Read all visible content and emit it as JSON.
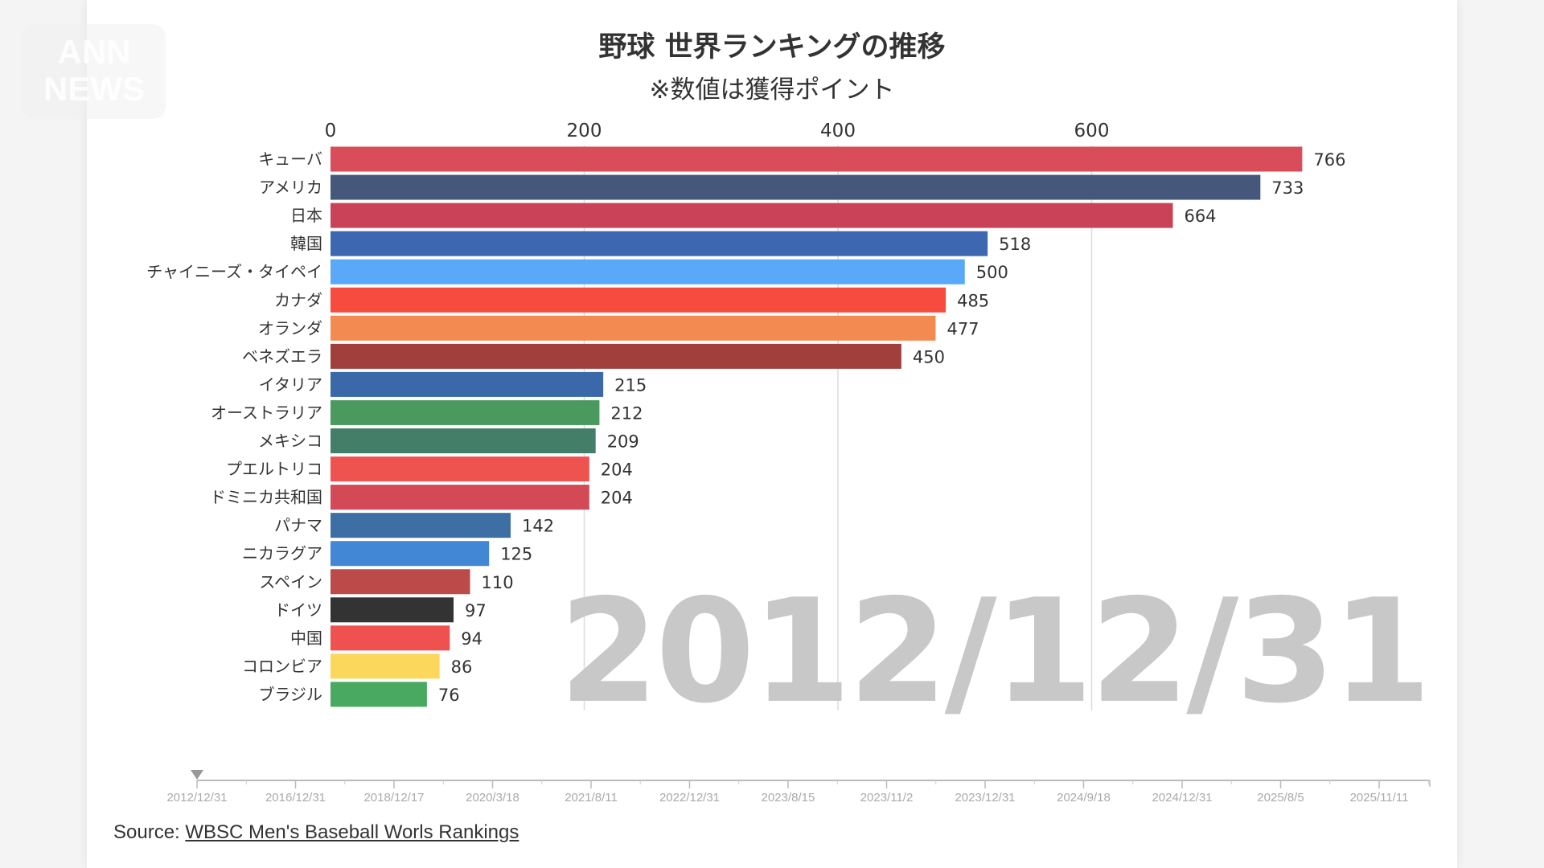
{
  "title": "野球 世界ランキングの推移",
  "subtitle": "※数値は獲得ポイント",
  "watermark": "ANN NEWS",
  "current_date": "2012/12/31",
  "source": {
    "prefix": "Source: ",
    "link_text": "WBSC Men's Baseball Worls Rankings"
  },
  "timeline": {
    "labels": [
      "2012/12/31",
      "2016/12/31",
      "2018/12/17",
      "2020/3/18",
      "2021/8/11",
      "2022/12/31",
      "2023/8/15",
      "2023/11/2",
      "2023/12/31",
      "2024/9/18",
      "2024/12/31",
      "2025/8/5",
      "2025/11/11"
    ],
    "selected_index": 0
  },
  "chart_data": {
    "type": "bar",
    "orientation": "horizontal",
    "title": "野球 世界ランキングの推移",
    "subtitle": "※数値は獲得ポイント",
    "xlim": [
      0,
      800
    ],
    "x_ticks": [
      0,
      200,
      400,
      600
    ],
    "grid": true,
    "categories": [
      "キューバ",
      "アメリカ",
      "日本",
      "韓国",
      "チャイニーズ・タイペイ",
      "カナダ",
      "オランダ",
      "ベネズエラ",
      "イタリア",
      "オーストラリア",
      "メキシコ",
      "プエルトリコ",
      "ドミニカ共和国",
      "パナマ",
      "ニカラグア",
      "スペイン",
      "ドイツ",
      "中国",
      "コロンビア",
      "ブラジル"
    ],
    "values": [
      766,
      733,
      664,
      518,
      500,
      485,
      477,
      450,
      215,
      212,
      209,
      204,
      204,
      142,
      125,
      110,
      97,
      94,
      86,
      76
    ],
    "colors": [
      "#d94c59",
      "#45577b",
      "#c94257",
      "#3e67b1",
      "#5aa8f8",
      "#f74b40",
      "#f28a52",
      "#a03f3c",
      "#3a68a8",
      "#4a9a60",
      "#437f68",
      "#ef5350",
      "#d34a56",
      "#3d6fa4",
      "#4287d6",
      "#bb4a48",
      "#333333",
      "#ef5050",
      "#fbd75b",
      "#4aa960"
    ]
  }
}
